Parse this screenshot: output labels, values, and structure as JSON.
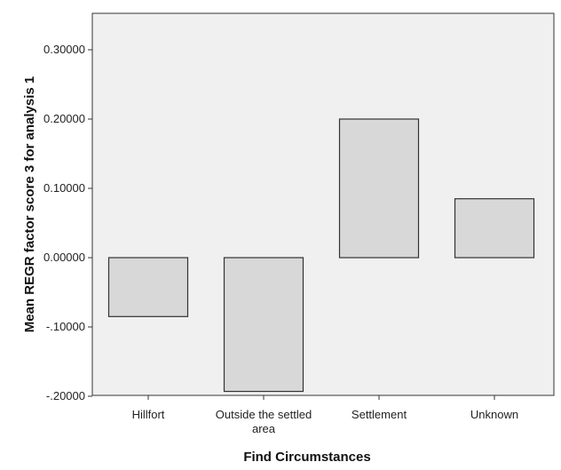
{
  "chart_data": {
    "type": "bar",
    "title": "",
    "xlabel": "Find Circumstances",
    "ylabel": "Mean REGR factor score   3 for analysis 1",
    "categories": [
      [
        "Hillfort"
      ],
      [
        "Outside the settled",
        "area"
      ],
      [
        "Settlement"
      ],
      [
        "Unknown"
      ]
    ],
    "values": [
      -0.085,
      -0.193,
      0.2,
      0.085
    ],
    "ylim": [
      -0.2,
      0.35
    ],
    "yticks": [
      -0.2,
      -0.1,
      0.0,
      0.1,
      0.2,
      0.3
    ],
    "ytick_labels": [
      "-.20000",
      "-.10000",
      "0.00000",
      "0.10000",
      "0.20000",
      "0.30000"
    ],
    "grid": false,
    "colors": {
      "bar_fill": "#d8d8d8",
      "bar_stroke": "#333333",
      "plot_bg": "#f0f0f0",
      "axis": "#333333"
    }
  }
}
